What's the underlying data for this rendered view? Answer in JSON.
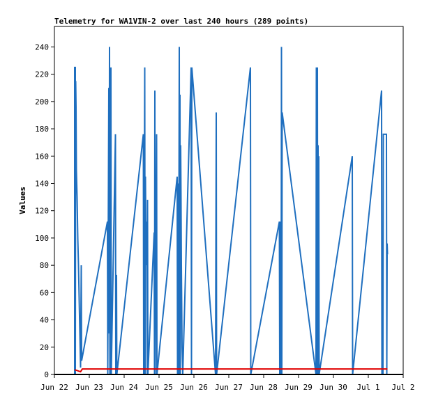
{
  "chart_data": {
    "type": "line",
    "title": "Telemetry for WA1VIN-2 over last 240 hours (289 points)",
    "xlabel": "",
    "ylabel": "Values",
    "x_ticks": [
      "Jun 22",
      "Jun 23",
      "Jun 24",
      "Jun 25",
      "Jun 26",
      "Jun 27",
      "Jun 28",
      "Jun 29",
      "Jun 30",
      "Jul 1",
      "Jul 2"
    ],
    "x_range_days": [
      0,
      10
    ],
    "ylim": [
      0,
      255
    ],
    "y_ticks": [
      0,
      20,
      40,
      60,
      80,
      100,
      120,
      140,
      160,
      180,
      200,
      220,
      240
    ],
    "grid": false,
    "legend": "none",
    "colors": {
      "series_blue": "#1f6fbf",
      "series_red": "#e00000",
      "series_black": "#000000"
    },
    "series": [
      {
        "color": "#1f6fbf",
        "points": [
          [
            0.58,
            0
          ],
          [
            0.58,
            225
          ],
          [
            0.6,
            225
          ],
          [
            0.6,
            0
          ],
          [
            0.61,
            215
          ],
          [
            0.62,
            196
          ],
          [
            0.63,
            150
          ],
          [
            0.65,
            130
          ],
          [
            0.67,
            100
          ],
          [
            0.69,
            80
          ],
          [
            0.71,
            55
          ],
          [
            0.73,
            30
          ],
          [
            0.75,
            5
          ],
          [
            0.77,
            80
          ],
          [
            0.78,
            10
          ],
          [
            1.52,
            112
          ],
          [
            1.53,
            0
          ],
          [
            1.54,
            80
          ],
          [
            1.56,
            210
          ],
          [
            1.57,
            30
          ],
          [
            1.58,
            240
          ],
          [
            1.59,
            0
          ],
          [
            1.6,
            180
          ],
          [
            1.62,
            225
          ],
          [
            1.63,
            0
          ],
          [
            1.75,
            176
          ],
          [
            1.76,
            0
          ],
          [
            1.78,
            73
          ],
          [
            1.79,
            0
          ],
          [
            2.55,
            176
          ],
          [
            2.56,
            0
          ],
          [
            2.59,
            225
          ],
          [
            2.6,
            0
          ],
          [
            2.61,
            145
          ],
          [
            2.63,
            80
          ],
          [
            2.65,
            112
          ],
          [
            2.66,
            0
          ],
          [
            2.67,
            128
          ],
          [
            2.68,
            0
          ],
          [
            2.86,
            104
          ],
          [
            2.87,
            0
          ],
          [
            2.88,
            208
          ],
          [
            2.89,
            0
          ],
          [
            2.93,
            176
          ],
          [
            2.94,
            0
          ],
          [
            3.52,
            145
          ],
          [
            3.53,
            0
          ],
          [
            3.55,
            140
          ],
          [
            3.56,
            0
          ],
          [
            3.58,
            240
          ],
          [
            3.59,
            0
          ],
          [
            3.6,
            205
          ],
          [
            3.61,
            0
          ],
          [
            3.62,
            168
          ],
          [
            3.63,
            130
          ],
          [
            3.64,
            80
          ],
          [
            3.66,
            20
          ],
          [
            3.68,
            0
          ],
          [
            3.92,
            225
          ],
          [
            3.93,
            0
          ],
          [
            3.94,
            225
          ],
          [
            4.62,
            0
          ],
          [
            4.64,
            192
          ],
          [
            4.65,
            0
          ],
          [
            5.62,
            225
          ],
          [
            5.63,
            0
          ],
          [
            6.45,
            112
          ],
          [
            6.46,
            0
          ],
          [
            6.48,
            112
          ],
          [
            6.5,
            0
          ],
          [
            6.51,
            240
          ],
          [
            6.52,
            0
          ],
          [
            6.53,
            192
          ],
          [
            7.5,
            0
          ],
          [
            7.51,
            225
          ],
          [
            7.52,
            0
          ],
          [
            7.54,
            225
          ],
          [
            7.55,
            0
          ],
          [
            7.56,
            168
          ],
          [
            7.57,
            0
          ],
          [
            7.58,
            160
          ],
          [
            7.59,
            0
          ],
          [
            8.54,
            160
          ],
          [
            8.55,
            0
          ],
          [
            9.38,
            208
          ],
          [
            9.39,
            0
          ],
          [
            9.41,
            96
          ],
          [
            9.42,
            0
          ],
          [
            9.43,
            176
          ],
          [
            9.45,
            176
          ],
          [
            9.47,
            176
          ],
          [
            9.49,
            176
          ],
          [
            9.52,
            176
          ],
          [
            9.53,
            0
          ],
          [
            9.54,
            96
          ],
          [
            9.55,
            88
          ]
        ]
      },
      {
        "color": "#e00000",
        "points": [
          [
            0.58,
            3.5
          ],
          [
            0.75,
            2
          ],
          [
            0.8,
            4
          ],
          [
            9.55,
            4
          ]
        ]
      },
      {
        "color": "#000000",
        "points": [
          [
            0.0,
            0
          ],
          [
            10.0,
            0
          ]
        ]
      }
    ]
  }
}
